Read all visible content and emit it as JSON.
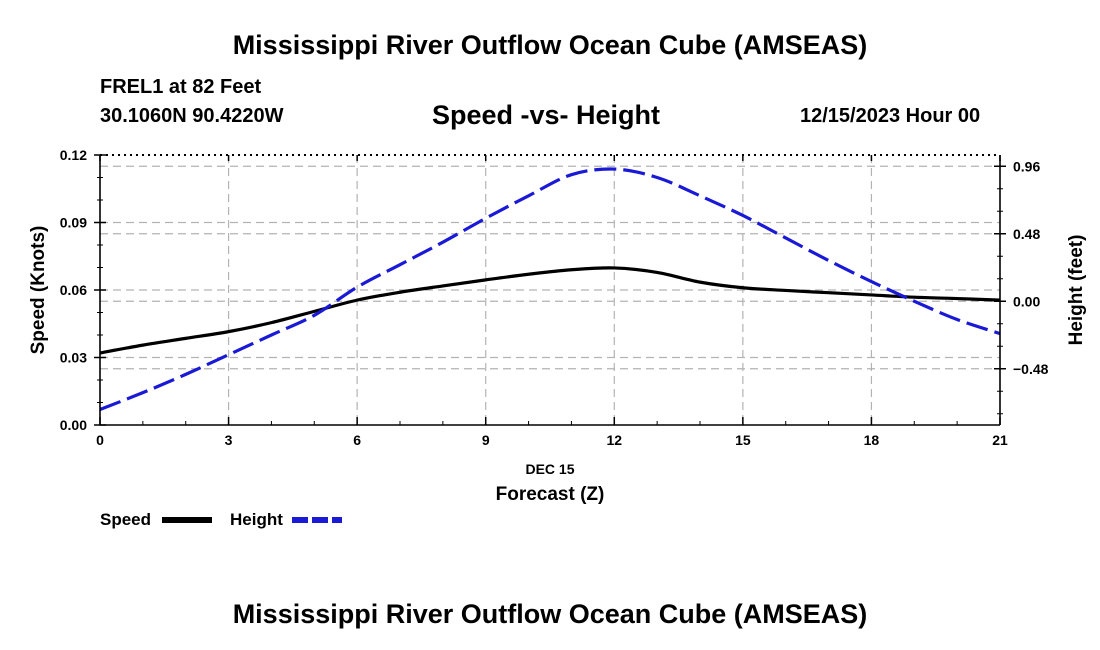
{
  "header": {
    "title": "Mississippi River Outflow Ocean Cube (AMSEAS)",
    "station": "FREL1 at 82 Feet",
    "coords": "30.1060N  90.4220W",
    "datetime": "12/15/2023 Hour 00",
    "footer_title": "Mississippi River Outflow Ocean Cube (AMSEAS)"
  },
  "chart_data": {
    "type": "line",
    "title": "Speed -vs- Height",
    "xlabel": "Forecast (Z)",
    "x_date_label": "DEC 15",
    "ylabel_left": "Speed (Knots)",
    "ylabel_right": "Height (feet)",
    "xlim": [
      0,
      21
    ],
    "ylim_left": [
      0,
      0.12
    ],
    "ylim_right": [
      -0.88,
      1.04
    ],
    "x_ticks": [
      0,
      3,
      6,
      9,
      12,
      15,
      18,
      21
    ],
    "x_tick_labels": [
      "0",
      "3",
      "6",
      "9",
      "12",
      "15",
      "18",
      "21"
    ],
    "y_left_ticks": [
      0,
      0.03,
      0.06,
      0.09,
      0.12
    ],
    "y_left_tick_labels": [
      "0.00",
      "0.03",
      "0.06",
      "0.09",
      "0.12"
    ],
    "y_right_ticks": [
      -0.48,
      0,
      0.48,
      0.96
    ],
    "y_right_tick_labels": [
      "−0.48",
      "0.00",
      "0.48",
      "0.96"
    ],
    "grid": true,
    "series": [
      {
        "name": "Speed",
        "axis": "left",
        "color": "#000000",
        "style": "solid",
        "x": [
          0,
          1,
          2,
          3,
          4,
          5,
          6,
          7,
          8,
          9,
          10,
          11,
          12,
          13,
          14,
          15,
          16,
          17,
          18,
          19,
          20,
          21
        ],
        "values": [
          0.032,
          0.0355,
          0.0385,
          0.0415,
          0.0455,
          0.0505,
          0.0555,
          0.059,
          0.0618,
          0.0645,
          0.067,
          0.069,
          0.0698,
          0.0678,
          0.0635,
          0.061,
          0.0598,
          0.0588,
          0.0578,
          0.0568,
          0.0562,
          0.0555
        ]
      },
      {
        "name": "Height",
        "axis": "right",
        "color": "#1a1ad6",
        "style": "dashed",
        "x": [
          0,
          1,
          2,
          3,
          4,
          5,
          6,
          7,
          8,
          9,
          10,
          11,
          12,
          13,
          14,
          15,
          16,
          17,
          18,
          19,
          20,
          21
        ],
        "values": [
          -0.77,
          -0.65,
          -0.52,
          -0.38,
          -0.24,
          -0.1,
          0.1,
          0.26,
          0.42,
          0.59,
          0.75,
          0.9,
          0.94,
          0.88,
          0.75,
          0.61,
          0.45,
          0.29,
          0.14,
          0.0,
          -0.13,
          -0.23
        ]
      }
    ],
    "legend": [
      {
        "label": "Speed",
        "color": "#000000",
        "style": "solid"
      },
      {
        "label": "Height",
        "color": "#1a1ad6",
        "style": "dashed"
      }
    ],
    "legend_position": "bottom-left"
  }
}
